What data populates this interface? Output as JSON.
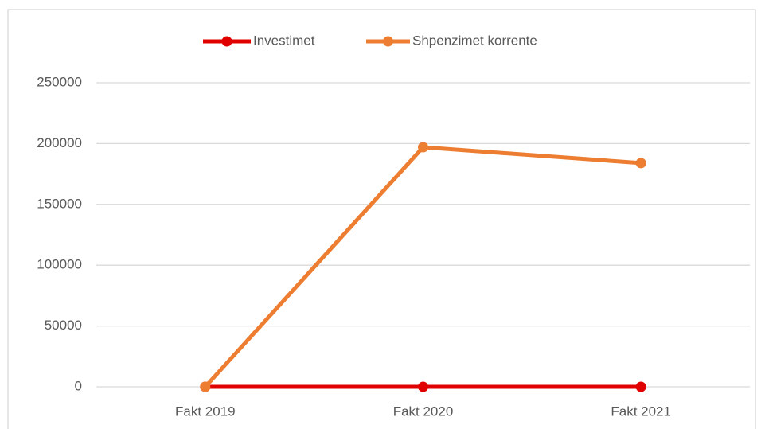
{
  "chart_data": {
    "type": "line",
    "categories": [
      "Fakt 2019",
      "Fakt 2020",
      "Fakt 2021"
    ],
    "series": [
      {
        "name": "Investimet",
        "color": "#e00000",
        "values": [
          0,
          0,
          0
        ]
      },
      {
        "name": "Shpenzimet korrente",
        "color": "#ed7d31",
        "values": [
          0,
          197000,
          184000
        ]
      }
    ],
    "ylim": [
      0,
      250000
    ],
    "yticks": [
      0,
      50000,
      100000,
      150000,
      200000,
      250000
    ],
    "grid": true,
    "legend": "top"
  }
}
